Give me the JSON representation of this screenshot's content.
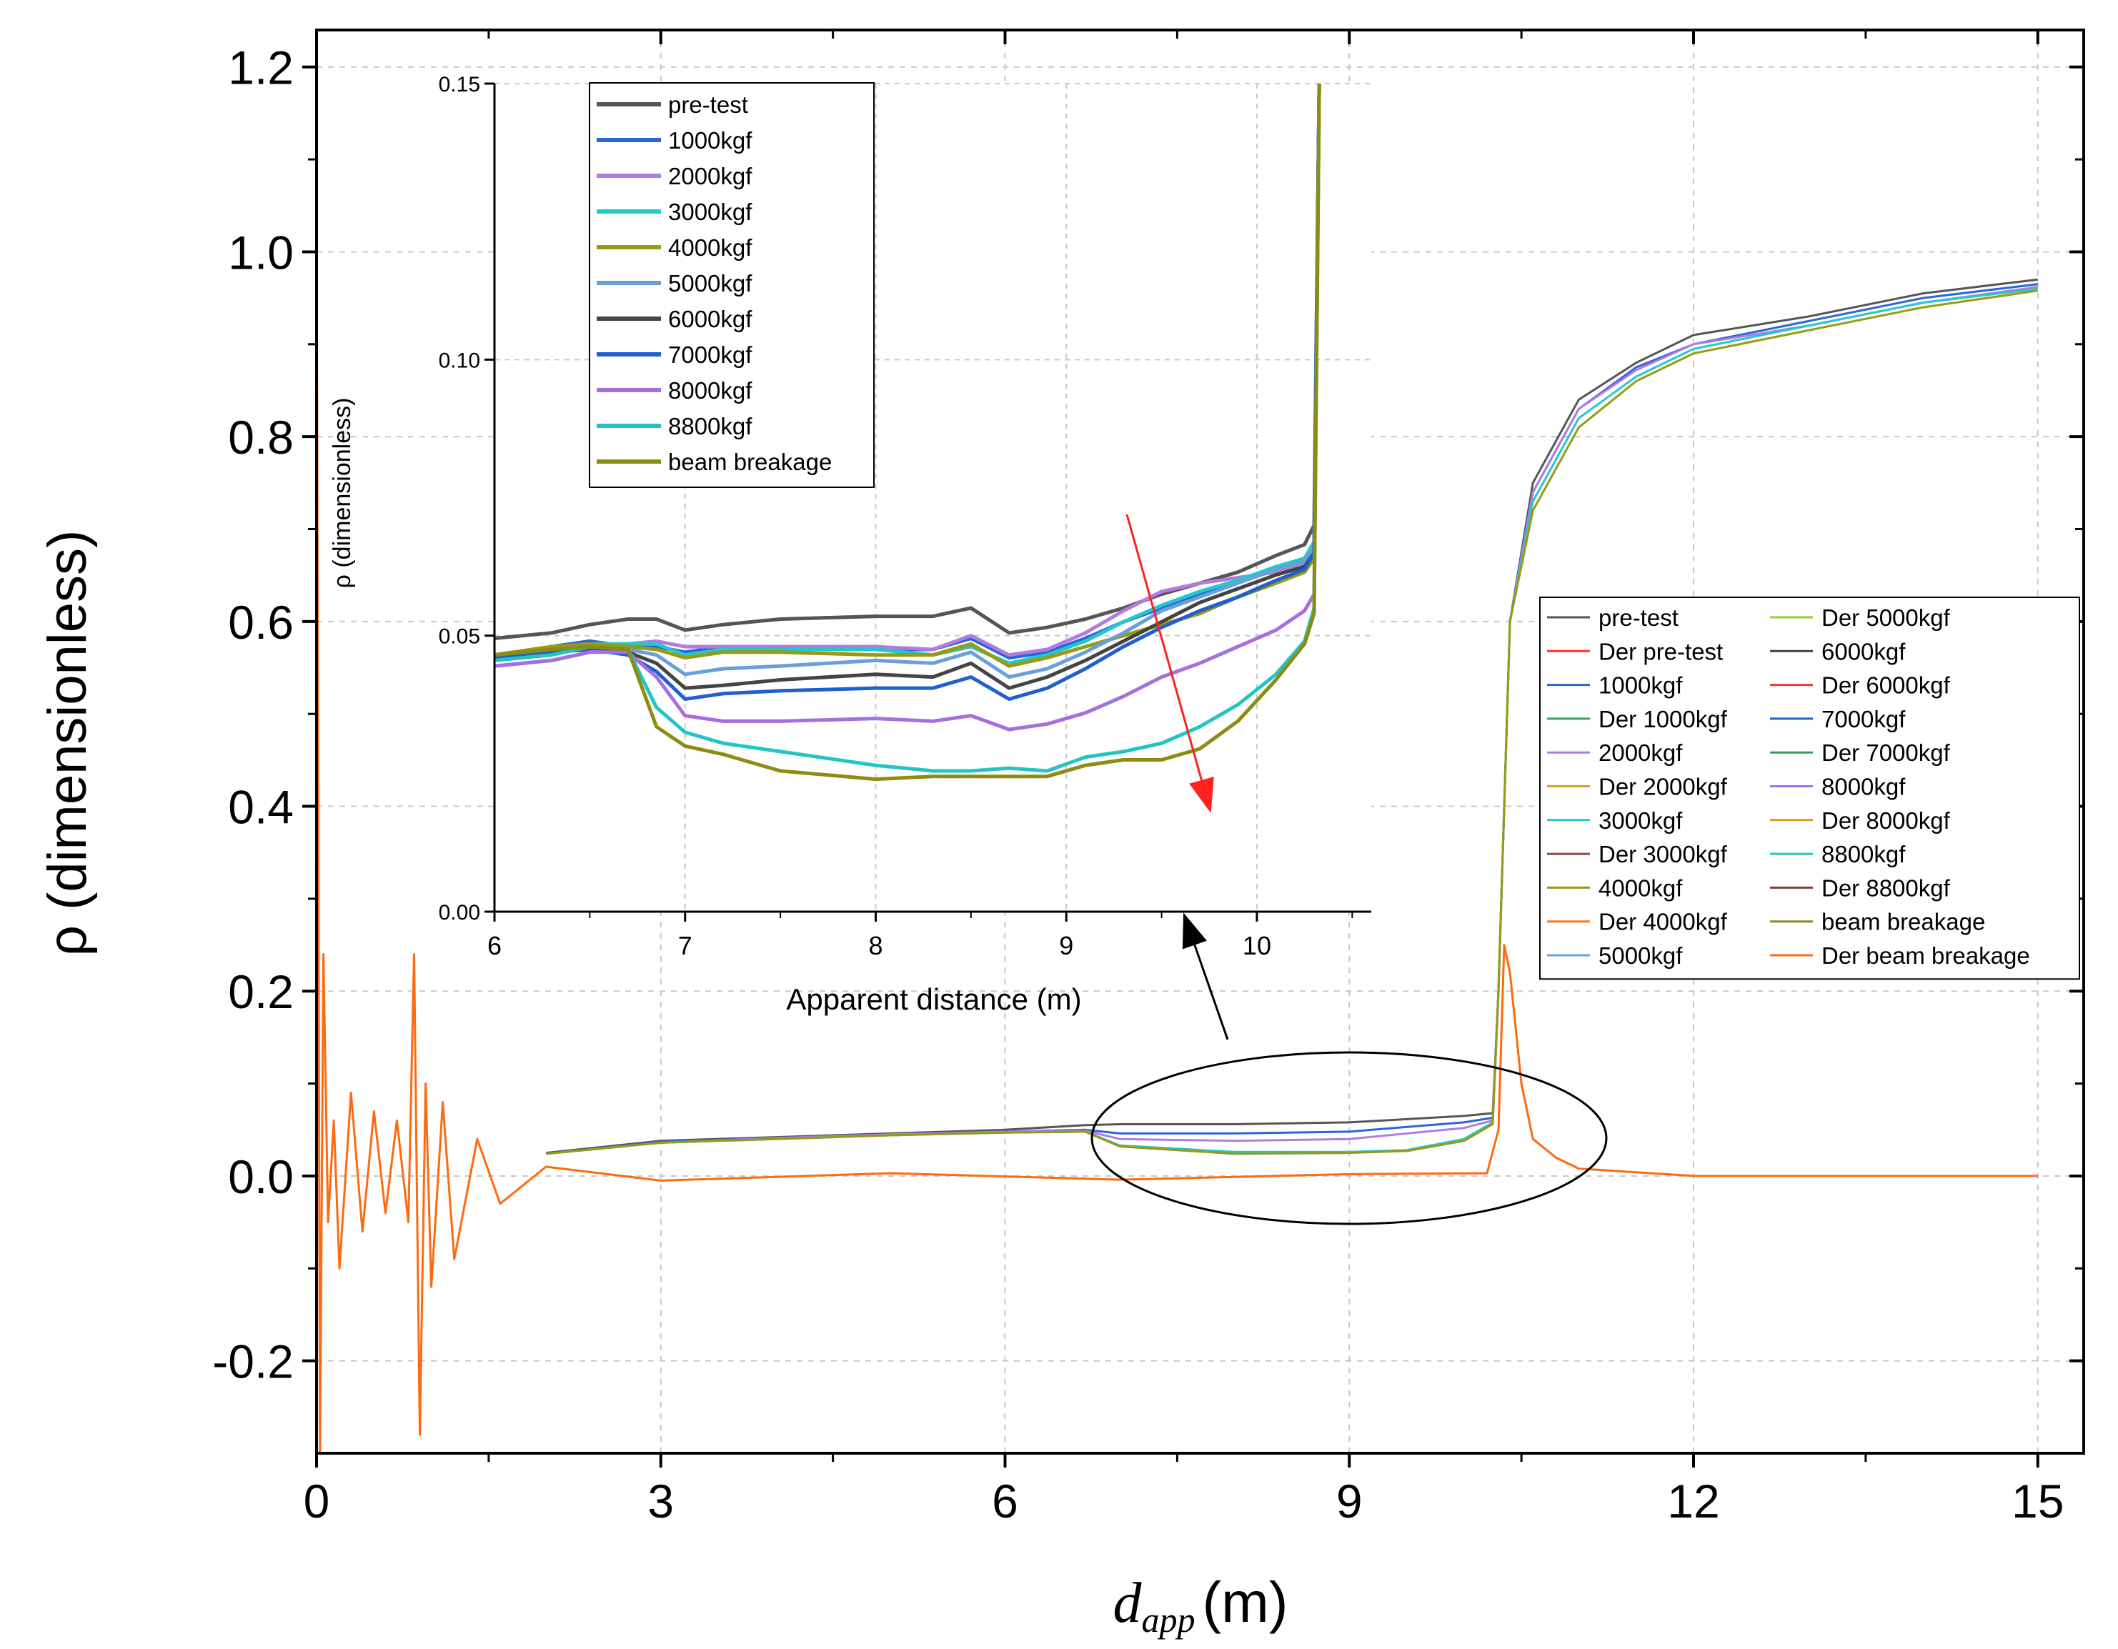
{
  "chart_data": [
    {
      "type": "line",
      "panel": "main",
      "xlabel_italic": "d",
      "xlabel_sub": "app",
      "xlabel_unit": "(m)",
      "ylabel": "ρ (dimensionless)",
      "xlim": [
        0,
        15.4
      ],
      "ylim": [
        -0.3,
        1.24
      ],
      "xticks": [
        0,
        3,
        6,
        9,
        12,
        15
      ],
      "xtick_labels": [
        "0",
        "3",
        "6",
        "9",
        "12",
        "15"
      ],
      "yticks": [
        -0.2,
        0.0,
        0.2,
        0.4,
        0.6,
        0.8,
        1.0,
        1.2
      ],
      "ytick_labels": [
        "-0.2",
        "0.0",
        "0.2",
        "0.4",
        "0.6",
        "0.8",
        "1.0",
        "1.2"
      ],
      "grid": true,
      "legend_placement": "right",
      "legend_columns": 2,
      "legend": [
        {
          "name": "pre-test",
          "color": "#555555"
        },
        {
          "name": "Der pre-test",
          "color": "#ff3333"
        },
        {
          "name": "1000kgf",
          "color": "#2a66d9"
        },
        {
          "name": "Der 1000kgf",
          "color": "#2eaa55"
        },
        {
          "name": "2000kgf",
          "color": "#b27be0"
        },
        {
          "name": "Der 2000kgf",
          "color": "#d9a020"
        },
        {
          "name": "3000kgf",
          "color": "#23c9c9"
        },
        {
          "name": "Der 3000kgf",
          "color": "#8b4a4a"
        },
        {
          "name": "4000kgf",
          "color": "#9a9a10"
        },
        {
          "name": "Der 4000kgf",
          "color": "#ff7a1a"
        },
        {
          "name": "5000kgf",
          "color": "#6a9fd8"
        },
        {
          "name": "Der 5000kgf",
          "color": "#8fd22c"
        },
        {
          "name": "6000kgf",
          "color": "#444444"
        },
        {
          "name": "Der 6000kgf",
          "color": "#e83a3a"
        },
        {
          "name": "7000kgf",
          "color": "#1f5fd0"
        },
        {
          "name": "Der 7000kgf",
          "color": "#2f9f5a"
        },
        {
          "name": "8000kgf",
          "color": "#a56fe0"
        },
        {
          "name": "Der 8000kgf",
          "color": "#d49a1c"
        },
        {
          "name": "8800kgf",
          "color": "#24c4c4"
        },
        {
          "name": "Der 8800kgf",
          "color": "#7a4040"
        },
        {
          "name": "beam breakage",
          "color": "#8c8c10"
        },
        {
          "name": "Der beam breakage",
          "color": "#ff6a10"
        }
      ],
      "series": [
        {
          "name": "pre-test",
          "color": "#555555",
          "x": [
            2.0,
            3.0,
            4.0,
            5.0,
            6.0,
            6.7,
            7.0,
            8.0,
            9.0,
            10.0,
            10.25,
            10.3,
            10.4,
            10.6,
            11.0,
            11.5,
            12.0,
            13.0,
            14.0,
            15.0
          ],
          "y": [
            0.025,
            0.038,
            0.042,
            0.046,
            0.05,
            0.055,
            0.056,
            0.056,
            0.058,
            0.065,
            0.068,
            0.2,
            0.6,
            0.75,
            0.84,
            0.88,
            0.91,
            0.93,
            0.955,
            0.97
          ]
        },
        {
          "name": "1000kgf",
          "color": "#2a66d9",
          "x": [
            2.0,
            3.0,
            4.0,
            5.0,
            6.0,
            6.7,
            7.0,
            8.0,
            9.0,
            10.0,
            10.25,
            10.3,
            10.4,
            10.6,
            11.0,
            11.5,
            12.0,
            13.0,
            14.0,
            15.0
          ],
          "y": [
            0.024,
            0.037,
            0.041,
            0.045,
            0.048,
            0.05,
            0.046,
            0.046,
            0.048,
            0.058,
            0.063,
            0.2,
            0.6,
            0.74,
            0.83,
            0.875,
            0.9,
            0.925,
            0.95,
            0.965
          ]
        },
        {
          "name": "2000kgf",
          "color": "#b27be0",
          "x": [
            2.0,
            3.0,
            4.0,
            5.0,
            6.0,
            6.7,
            7.0,
            8.0,
            9.0,
            10.0,
            10.25,
            10.3,
            10.4,
            10.6,
            11.0,
            11.5,
            12.0,
            13.0,
            14.0,
            15.0
          ],
          "y": [
            0.024,
            0.036,
            0.041,
            0.045,
            0.048,
            0.049,
            0.04,
            0.038,
            0.04,
            0.052,
            0.06,
            0.2,
            0.6,
            0.74,
            0.83,
            0.872,
            0.9,
            0.92,
            0.945,
            0.962
          ]
        },
        {
          "name": "3000kgf",
          "color": "#23c9c9",
          "x": [
            2.0,
            3.0,
            4.0,
            5.0,
            6.0,
            6.7,
            7.0,
            8.0,
            9.0,
            9.5,
            10.0,
            10.25,
            10.3,
            10.4,
            10.6,
            11.0,
            11.5,
            12.0,
            13.0,
            14.0,
            15.0
          ],
          "y": [
            0.024,
            0.036,
            0.04,
            0.044,
            0.047,
            0.048,
            0.033,
            0.026,
            0.026,
            0.028,
            0.04,
            0.058,
            0.2,
            0.6,
            0.73,
            0.82,
            0.865,
            0.895,
            0.92,
            0.945,
            0.96
          ]
        },
        {
          "name": "4000kgf",
          "color": "#9a9a10",
          "x": [
            2.0,
            3.0,
            4.0,
            5.0,
            6.0,
            6.7,
            7.0,
            8.0,
            9.0,
            9.5,
            10.0,
            10.25,
            10.3,
            10.4,
            10.6,
            11.0,
            11.5,
            12.0,
            13.0,
            14.0,
            15.0
          ],
          "y": [
            0.024,
            0.036,
            0.04,
            0.044,
            0.047,
            0.048,
            0.032,
            0.024,
            0.025,
            0.027,
            0.038,
            0.056,
            0.2,
            0.6,
            0.72,
            0.81,
            0.86,
            0.89,
            0.915,
            0.94,
            0.958
          ]
        },
        {
          "name": "Der beam breakage",
          "color": "#ff6a10",
          "x": [
            0.0,
            0.03,
            0.06,
            0.1,
            0.15,
            0.2,
            0.3,
            0.4,
            0.5,
            0.6,
            0.7,
            0.8,
            0.85,
            0.9,
            0.95,
            1.0,
            1.1,
            1.2,
            1.4,
            1.6,
            2.0,
            3.0,
            5.0,
            7.0,
            9.0,
            10.2,
            10.3,
            10.35,
            10.4,
            10.5,
            10.6,
            10.8,
            11.0,
            12.0,
            15.0
          ],
          "y": [
            1.05,
            -0.3,
            0.24,
            -0.05,
            0.06,
            -0.1,
            0.09,
            -0.06,
            0.07,
            -0.04,
            0.06,
            -0.05,
            0.24,
            -0.28,
            0.1,
            -0.12,
            0.08,
            -0.09,
            0.04,
            -0.03,
            0.01,
            -0.005,
            0.003,
            -0.004,
            0.002,
            0.003,
            0.05,
            0.25,
            0.22,
            0.1,
            0.04,
            0.02,
            0.008,
            0.0,
            0.0
          ]
        }
      ]
    },
    {
      "type": "line",
      "panel": "inset",
      "xlabel": "Apparent distance (m)",
      "ylabel": "ρ (dimensionless)",
      "xlim": [
        6,
        10.6
      ],
      "ylim": [
        0,
        0.15
      ],
      "xticks": [
        6,
        7,
        8,
        9,
        10
      ],
      "xtick_labels": [
        "6",
        "7",
        "8",
        "9",
        "10"
      ],
      "yticks": [
        0.0,
        0.05,
        0.1,
        0.15
      ],
      "ytick_labels": [
        "0.00",
        "0.05",
        "0.10",
        "0.15"
      ],
      "grid": true,
      "legend_placement": "top-left",
      "x": [
        6.0,
        6.3,
        6.5,
        6.7,
        6.85,
        7.0,
        7.2,
        7.5,
        8.0,
        8.3,
        8.5,
        8.7,
        8.9,
        9.1,
        9.3,
        9.5,
        9.7,
        9.9,
        10.1,
        10.25,
        10.3,
        10.33
      ],
      "series": [
        {
          "name": "pre-test",
          "color": "#555555",
          "values": [
            0.0495,
            0.0505,
            0.052,
            0.053,
            0.053,
            0.051,
            0.052,
            0.053,
            0.0535,
            0.0535,
            0.055,
            0.0505,
            0.0515,
            0.053,
            0.055,
            0.0575,
            0.0595,
            0.0615,
            0.0645,
            0.0665,
            0.07,
            0.16
          ]
        },
        {
          "name": "1000kgf",
          "color": "#2a66d9",
          "values": [
            0.0465,
            0.048,
            0.049,
            0.048,
            0.048,
            0.047,
            0.048,
            0.048,
            0.0475,
            0.0475,
            0.0495,
            0.046,
            0.047,
            0.0495,
            0.0525,
            0.055,
            0.0575,
            0.06,
            0.062,
            0.0635,
            0.066,
            0.16
          ]
        },
        {
          "name": "2000kgf",
          "color": "#b27be0",
          "values": [
            0.0445,
            0.0455,
            0.047,
            0.0485,
            0.049,
            0.048,
            0.048,
            0.048,
            0.048,
            0.0475,
            0.05,
            0.0465,
            0.0475,
            0.0505,
            0.0545,
            0.058,
            0.0595,
            0.0605,
            0.0615,
            0.063,
            0.065,
            0.16
          ]
        },
        {
          "name": "3000kgf",
          "color": "#23c9c9",
          "values": [
            0.0465,
            0.0475,
            0.0485,
            0.0485,
            0.0485,
            0.0465,
            0.0475,
            0.0475,
            0.0475,
            0.0465,
            0.048,
            0.045,
            0.0465,
            0.049,
            0.0525,
            0.0555,
            0.058,
            0.06,
            0.0625,
            0.064,
            0.067,
            0.16
          ]
        },
        {
          "name": "4000kgf",
          "color": "#9a9a10",
          "values": [
            0.0465,
            0.048,
            0.0485,
            0.048,
            0.0475,
            0.046,
            0.047,
            0.047,
            0.0465,
            0.0465,
            0.0485,
            0.0445,
            0.046,
            0.048,
            0.05,
            0.052,
            0.054,
            0.057,
            0.0595,
            0.0615,
            0.064,
            0.16
          ]
        },
        {
          "name": "5000kgf",
          "color": "#6a9fd8",
          "values": [
            0.0465,
            0.0475,
            0.048,
            0.0475,
            0.0465,
            0.043,
            0.044,
            0.0445,
            0.0455,
            0.045,
            0.047,
            0.0425,
            0.044,
            0.047,
            0.0505,
            0.0545,
            0.057,
            0.0595,
            0.062,
            0.0635,
            0.066,
            0.16
          ]
        },
        {
          "name": "6000kgf",
          "color": "#444444",
          "values": [
            0.046,
            0.047,
            0.0475,
            0.047,
            0.045,
            0.0405,
            0.041,
            0.042,
            0.043,
            0.0425,
            0.045,
            0.0405,
            0.0425,
            0.0455,
            0.049,
            0.0525,
            0.056,
            0.0585,
            0.061,
            0.0625,
            0.065,
            0.16
          ]
        },
        {
          "name": "7000kgf",
          "color": "#1f5fd0",
          "values": [
            0.046,
            0.047,
            0.0475,
            0.0465,
            0.0435,
            0.0385,
            0.0395,
            0.04,
            0.0405,
            0.0405,
            0.0425,
            0.0385,
            0.0405,
            0.044,
            0.048,
            0.0515,
            0.0545,
            0.057,
            0.06,
            0.062,
            0.065,
            0.16
          ]
        },
        {
          "name": "8000kgf",
          "color": "#a56fe0",
          "values": [
            0.0445,
            0.0455,
            0.047,
            0.047,
            0.0425,
            0.0355,
            0.0345,
            0.0345,
            0.035,
            0.0345,
            0.0355,
            0.033,
            0.034,
            0.036,
            0.039,
            0.0425,
            0.045,
            0.048,
            0.051,
            0.0545,
            0.0575,
            0.16
          ]
        },
        {
          "name": "8800kgf",
          "color": "#24c4c4",
          "values": [
            0.0455,
            0.0465,
            0.048,
            0.0475,
            0.037,
            0.0325,
            0.0305,
            0.029,
            0.0265,
            0.0255,
            0.0255,
            0.026,
            0.0255,
            0.028,
            0.029,
            0.0305,
            0.0335,
            0.0375,
            0.043,
            0.049,
            0.055,
            0.16
          ]
        },
        {
          "name": "beam breakage",
          "color": "#8c8c10",
          "values": [
            0.0465,
            0.0475,
            0.048,
            0.0475,
            0.0335,
            0.03,
            0.0285,
            0.0255,
            0.024,
            0.0245,
            0.0245,
            0.0245,
            0.0245,
            0.0265,
            0.0275,
            0.0275,
            0.0295,
            0.0345,
            0.042,
            0.0485,
            0.054,
            0.16
          ]
        }
      ]
    }
  ]
}
